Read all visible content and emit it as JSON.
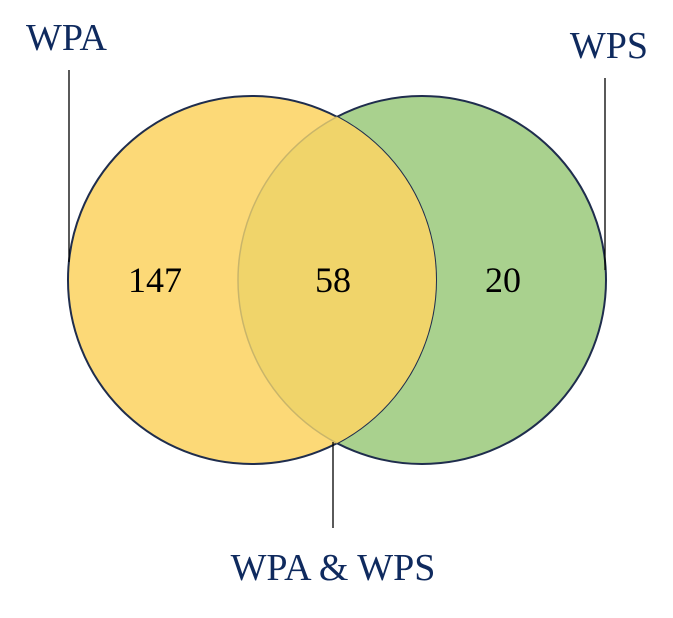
{
  "venn": {
    "set_a": {
      "label": "WPA",
      "count": "147",
      "color": "#fcd977"
    },
    "set_b": {
      "label": "WPS",
      "count": "20",
      "color": "#a9d18e"
    },
    "overlap": {
      "label": "WPA & WPS",
      "count": "58",
      "color": "#f0d46a"
    },
    "outline_color": "#1f2d4d",
    "label_color": "#0f2a5e"
  }
}
